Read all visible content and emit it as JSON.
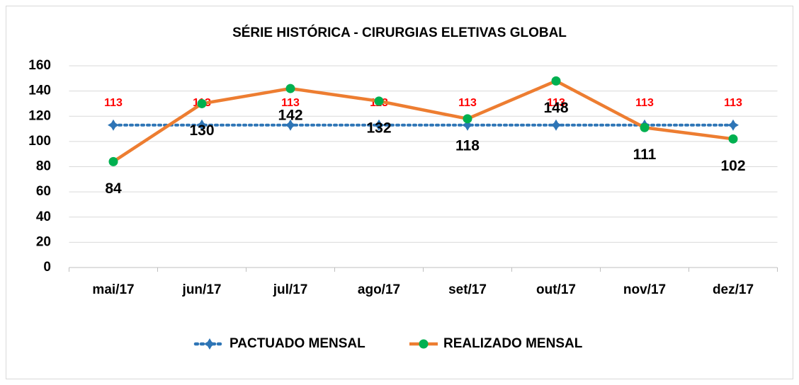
{
  "chart_data": {
    "type": "line",
    "title": "SÉRIE HISTÓRICA - CIRURGIAS ELETIVAS GLOBAL",
    "categories": [
      "mai/17",
      "jun/17",
      "jul/17",
      "ago/17",
      "set/17",
      "out/17",
      "nov/17",
      "dez/17"
    ],
    "series": [
      {
        "name": "PACTUADO MENSAL",
        "color": "#2e75b6",
        "marker_color": "#2e75b6",
        "label_color": "#ff0000",
        "dashed": true,
        "values": [
          113,
          113,
          113,
          113,
          113,
          113,
          113,
          113
        ]
      },
      {
        "name": "REALIZADO MENSAL",
        "color": "#ed7d31",
        "marker_color": "#00b050",
        "label_color": "#000000",
        "dashed": false,
        "values": [
          84,
          130,
          142,
          132,
          118,
          148,
          111,
          102
        ]
      }
    ],
    "ylim": [
      0,
      160
    ],
    "yticks": [
      0,
      20,
      40,
      60,
      80,
      100,
      120,
      140,
      160
    ],
    "grid": true,
    "legend": "bottom"
  }
}
